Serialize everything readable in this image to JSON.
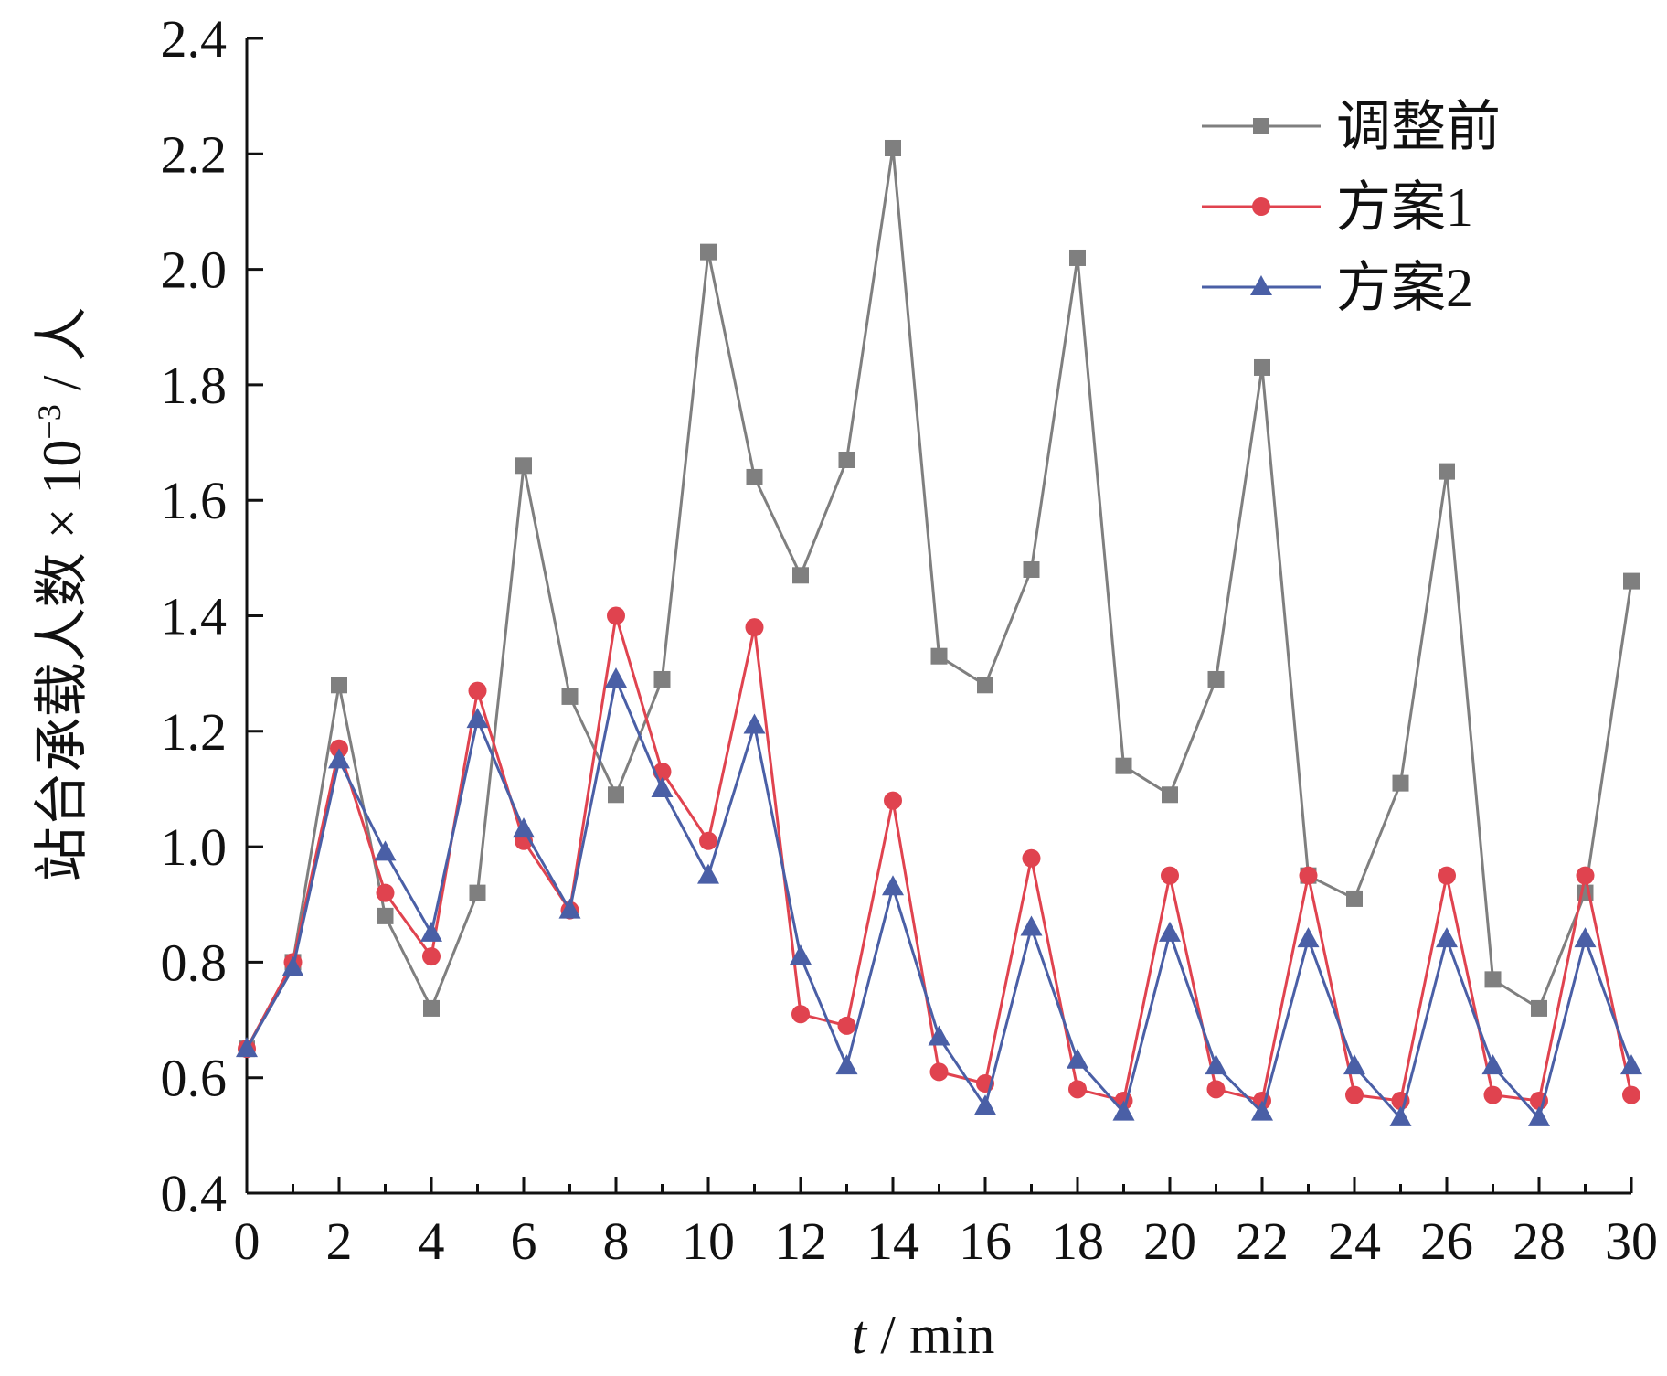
{
  "chart_data": {
    "type": "line",
    "title": "",
    "xlabel": {
      "italic": "t",
      "rest": " / min"
    },
    "ylabel": {
      "main": "站台承载人数 × 10",
      "superscript": "−3",
      "tail": " / 人"
    },
    "xlim": [
      0,
      30
    ],
    "ylim": [
      0.4,
      2.4
    ],
    "xticks": [
      0,
      2,
      4,
      6,
      8,
      10,
      12,
      14,
      16,
      18,
      20,
      22,
      24,
      26,
      28,
      30
    ],
    "yticks": [
      0.4,
      0.6,
      0.8,
      1.0,
      1.2,
      1.4,
      1.6,
      1.8,
      2.0,
      2.2,
      2.4
    ],
    "ytick_labels": [
      "0.4",
      "0.6",
      "0.8",
      "1.0",
      "1.2",
      "1.4",
      "1.6",
      "1.8",
      "2.0",
      "2.2",
      "2.4"
    ],
    "grid": false,
    "legend_position": "top-right",
    "x": [
      0,
      1,
      2,
      3,
      4,
      5,
      6,
      7,
      8,
      9,
      10,
      11,
      12,
      13,
      14,
      15,
      16,
      17,
      18,
      19,
      20,
      21,
      22,
      23,
      24,
      25,
      26,
      27,
      28,
      29,
      30
    ],
    "series": [
      {
        "name": "调整前",
        "color": "#7f7f7f",
        "marker": "square",
        "values": [
          0.65,
          0.8,
          1.28,
          0.88,
          0.72,
          0.92,
          1.66,
          1.26,
          1.09,
          1.29,
          2.03,
          1.64,
          1.47,
          1.67,
          2.21,
          1.33,
          1.28,
          1.48,
          2.02,
          1.14,
          1.09,
          1.29,
          1.83,
          0.95,
          0.91,
          1.11,
          1.65,
          0.77,
          0.72,
          0.92,
          1.46
        ]
      },
      {
        "name": "方案1",
        "color": "#e0434f",
        "marker": "circle",
        "values": [
          0.65,
          0.8,
          1.17,
          0.92,
          0.81,
          1.27,
          1.01,
          0.89,
          1.4,
          1.13,
          1.01,
          1.38,
          0.71,
          0.69,
          1.08,
          0.61,
          0.59,
          0.98,
          0.58,
          0.56,
          0.95,
          0.58,
          0.56,
          0.95,
          0.57,
          0.56,
          0.95,
          0.57,
          0.56,
          0.95,
          0.57
        ]
      },
      {
        "name": "方案2",
        "color": "#4a5fa6",
        "marker": "triangle",
        "values": [
          0.65,
          0.79,
          1.15,
          0.99,
          0.85,
          1.22,
          1.03,
          0.89,
          1.29,
          1.1,
          0.95,
          1.21,
          0.81,
          0.62,
          0.93,
          0.67,
          0.55,
          0.86,
          0.63,
          0.54,
          0.85,
          0.62,
          0.54,
          0.84,
          0.62,
          0.53,
          0.84,
          0.62,
          0.53,
          0.84,
          0.62
        ]
      }
    ]
  }
}
